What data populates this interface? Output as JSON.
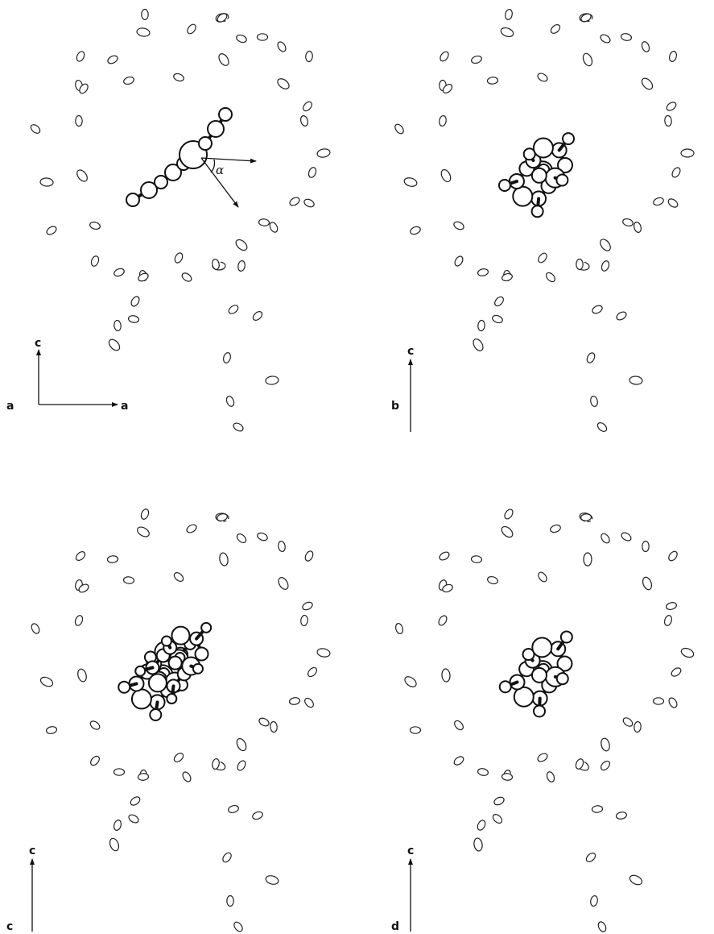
{
  "panels": [
    {
      "id": "a",
      "label": "a",
      "axis_vertical": "c",
      "axis_horizontal": "a",
      "guest_view": "edge-on",
      "angle_label": "α"
    },
    {
      "id": "b",
      "label": "b",
      "axis_vertical": "c",
      "guest_view": "tilted"
    },
    {
      "id": "c",
      "label": "c",
      "axis_vertical": "c",
      "guest_view": "disordered-pair"
    },
    {
      "id": "d",
      "label": "d",
      "axis_vertical": "c",
      "guest_view": "tilted-alternate"
    }
  ],
  "colors": {
    "ink": "#111111",
    "atom_fill": "#ffffff"
  }
}
